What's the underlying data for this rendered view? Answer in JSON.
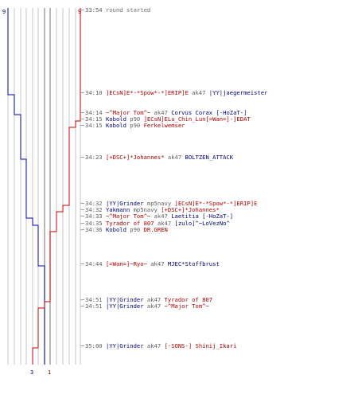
{
  "colors": {
    "team_blue": "#0000b0",
    "team_red": "#cc0000",
    "text_blue": "#000080",
    "text_red": "#b00000",
    "text_gray": "#707070",
    "grid": "#b8b8b8"
  },
  "teams": {
    "blue": {
      "start_count": "9",
      "end_count": "3"
    },
    "red": {
      "start_count": "9",
      "end_count": "1"
    }
  },
  "events": [
    {
      "time": "33:54",
      "kind": "info",
      "text": "round started"
    },
    {
      "time": "34:10",
      "kind": "kill",
      "killer": "]ECsN]E*-*Spow*-*]ERIP]E",
      "killer_team": "red",
      "weapon": "ak47",
      "victim": "|YY|jaegermeister",
      "victim_team": "blue"
    },
    {
      "time": "34:14",
      "kind": "kill",
      "killer": "~^Major Tom^~",
      "killer_team": "red",
      "weapon": "ak47",
      "victim": "Corvus Corax [-HoZaT-]",
      "victim_team": "blue"
    },
    {
      "time": "34:15",
      "kind": "kill",
      "killer": "Kobold",
      "killer_team": "blue",
      "weapon": "p90",
      "victim": "]ECsN]ELu_Chin_Lun[=Wan=]-]EDAT",
      "victim_team": "red"
    },
    {
      "time": "34:15",
      "kind": "kill",
      "killer": "Kobold",
      "killer_team": "blue",
      "weapon": "p90",
      "victim": "Ferkelwemser",
      "victim_team": "red"
    },
    {
      "time": "34:23",
      "kind": "kill",
      "killer": "[+DSC+]*Johannes*",
      "killer_team": "red",
      "weapon": "ak47",
      "victim": "BOLTZEN_ATTACK",
      "victim_team": "blue"
    },
    {
      "time": "34:32",
      "kind": "kill",
      "killer": "|YY|Grinder",
      "killer_team": "blue",
      "weapon": "mp5navy",
      "victim": "]ECsN]E*-*Spow*-*]ERIP]E",
      "victim_team": "red"
    },
    {
      "time": "34:32",
      "kind": "kill",
      "killer": "Yakmann",
      "killer_team": "blue",
      "weapon": "mp5navy",
      "victim": "[+DSC+]*Johannes*",
      "victim_team": "red"
    },
    {
      "time": "34:33",
      "kind": "kill",
      "killer": "~^Major Tom^~",
      "killer_team": "red",
      "weapon": "ak47",
      "victim": "Laetitia [-HoZaT-]",
      "victim_team": "blue"
    },
    {
      "time": "34:35",
      "kind": "kill",
      "killer": "Tyrador of 807",
      "killer_team": "red",
      "weapon": "ak47",
      "victim": "[zulo]^~LoVezNo^",
      "victim_team": "blue"
    },
    {
      "time": "34:36",
      "kind": "kill",
      "killer": "Kobold",
      "killer_team": "blue",
      "weapon": "p90",
      "victim": "DR.GREN",
      "victim_team": "red"
    },
    {
      "time": "34:44",
      "kind": "kill",
      "killer": "[=Wan=]~Ryo~",
      "killer_team": "red",
      "weapon": "ak47",
      "victim": "MJEC*Stoffbrust",
      "victim_team": "blue"
    },
    {
      "time": "34:51",
      "kind": "kill",
      "killer": "|YY|Grinder",
      "killer_team": "blue",
      "weapon": "ak47",
      "victim": "Tyrador of 807",
      "victim_team": "red"
    },
    {
      "time": "34:51",
      "kind": "kill",
      "killer": "|YY|Grinder",
      "killer_team": "blue",
      "weapon": "ak47",
      "victim": "~^Major Tom^~",
      "victim_team": "red"
    },
    {
      "time": "35:00",
      "kind": "kill",
      "killer": "|YY|Grinder",
      "killer_team": "blue",
      "weapon": "ak47",
      "victim": "[-SONS-] Shinij_Ikari",
      "victim_team": "red"
    }
  ]
}
